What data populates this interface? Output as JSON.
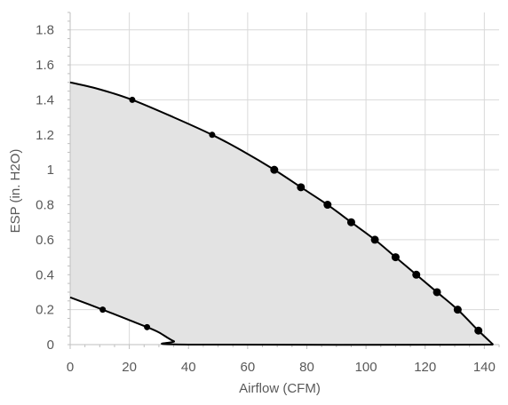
{
  "chart_data": {
    "type": "area",
    "xlabel": "Airflow (CFM)",
    "ylabel": "ESP (in. H2O)",
    "xlim": [
      0,
      145
    ],
    "ylim": [
      0,
      1.9
    ],
    "x_ticks": [
      0,
      20,
      40,
      60,
      80,
      100,
      120,
      140
    ],
    "y_ticks": [
      0,
      0.2,
      0.4,
      0.6,
      0.8,
      1,
      1.2,
      1.4,
      1.6,
      1.8
    ],
    "x_tick_labels": [
      "0",
      "20",
      "40",
      "60",
      "80",
      "100",
      "120",
      "140"
    ],
    "y_tick_labels": [
      "0",
      "0.2",
      "0.4",
      "0.6",
      "0.8",
      "1",
      "1.2",
      "1.4",
      "1.6",
      "1.8"
    ],
    "grid": true,
    "fill_color": "#e3e3e3",
    "grid_color": "#d9d9d9",
    "line_color": "#000000",
    "series": [
      {
        "role": "upper-boundary",
        "curve": [
          [
            0,
            1.5
          ],
          [
            10,
            1.46
          ],
          [
            21,
            1.4
          ],
          [
            35,
            1.3
          ],
          [
            48,
            1.2
          ],
          [
            58,
            1.11
          ],
          [
            69,
            1.0
          ],
          [
            78,
            0.9
          ],
          [
            87,
            0.8
          ],
          [
            95,
            0.7
          ],
          [
            103,
            0.6
          ],
          [
            110,
            0.5
          ],
          [
            117,
            0.4
          ],
          [
            124,
            0.3
          ],
          [
            131,
            0.2
          ],
          [
            138,
            0.08
          ],
          [
            143,
            0.0
          ]
        ],
        "markers": [
          [
            21,
            1.4
          ],
          [
            48,
            1.2
          ],
          [
            69,
            1.0
          ],
          [
            78,
            0.9
          ],
          [
            87,
            0.8
          ],
          [
            95,
            0.7
          ],
          [
            103,
            0.6
          ],
          [
            110,
            0.5
          ],
          [
            117,
            0.4
          ],
          [
            124,
            0.3
          ],
          [
            131,
            0.2
          ],
          [
            138,
            0.08
          ]
        ],
        "large_markers_from_index": 2
      },
      {
        "role": "lower-boundary",
        "curve": [
          [
            0,
            0.27
          ],
          [
            11,
            0.2
          ],
          [
            20,
            0.14
          ],
          [
            26,
            0.1
          ],
          [
            30,
            0.07
          ],
          [
            35,
            0.02
          ],
          [
            40,
            0.0
          ],
          [
            143,
            0.0
          ]
        ],
        "markers": [
          [
            11,
            0.2
          ],
          [
            26,
            0.1
          ]
        ]
      }
    ]
  }
}
